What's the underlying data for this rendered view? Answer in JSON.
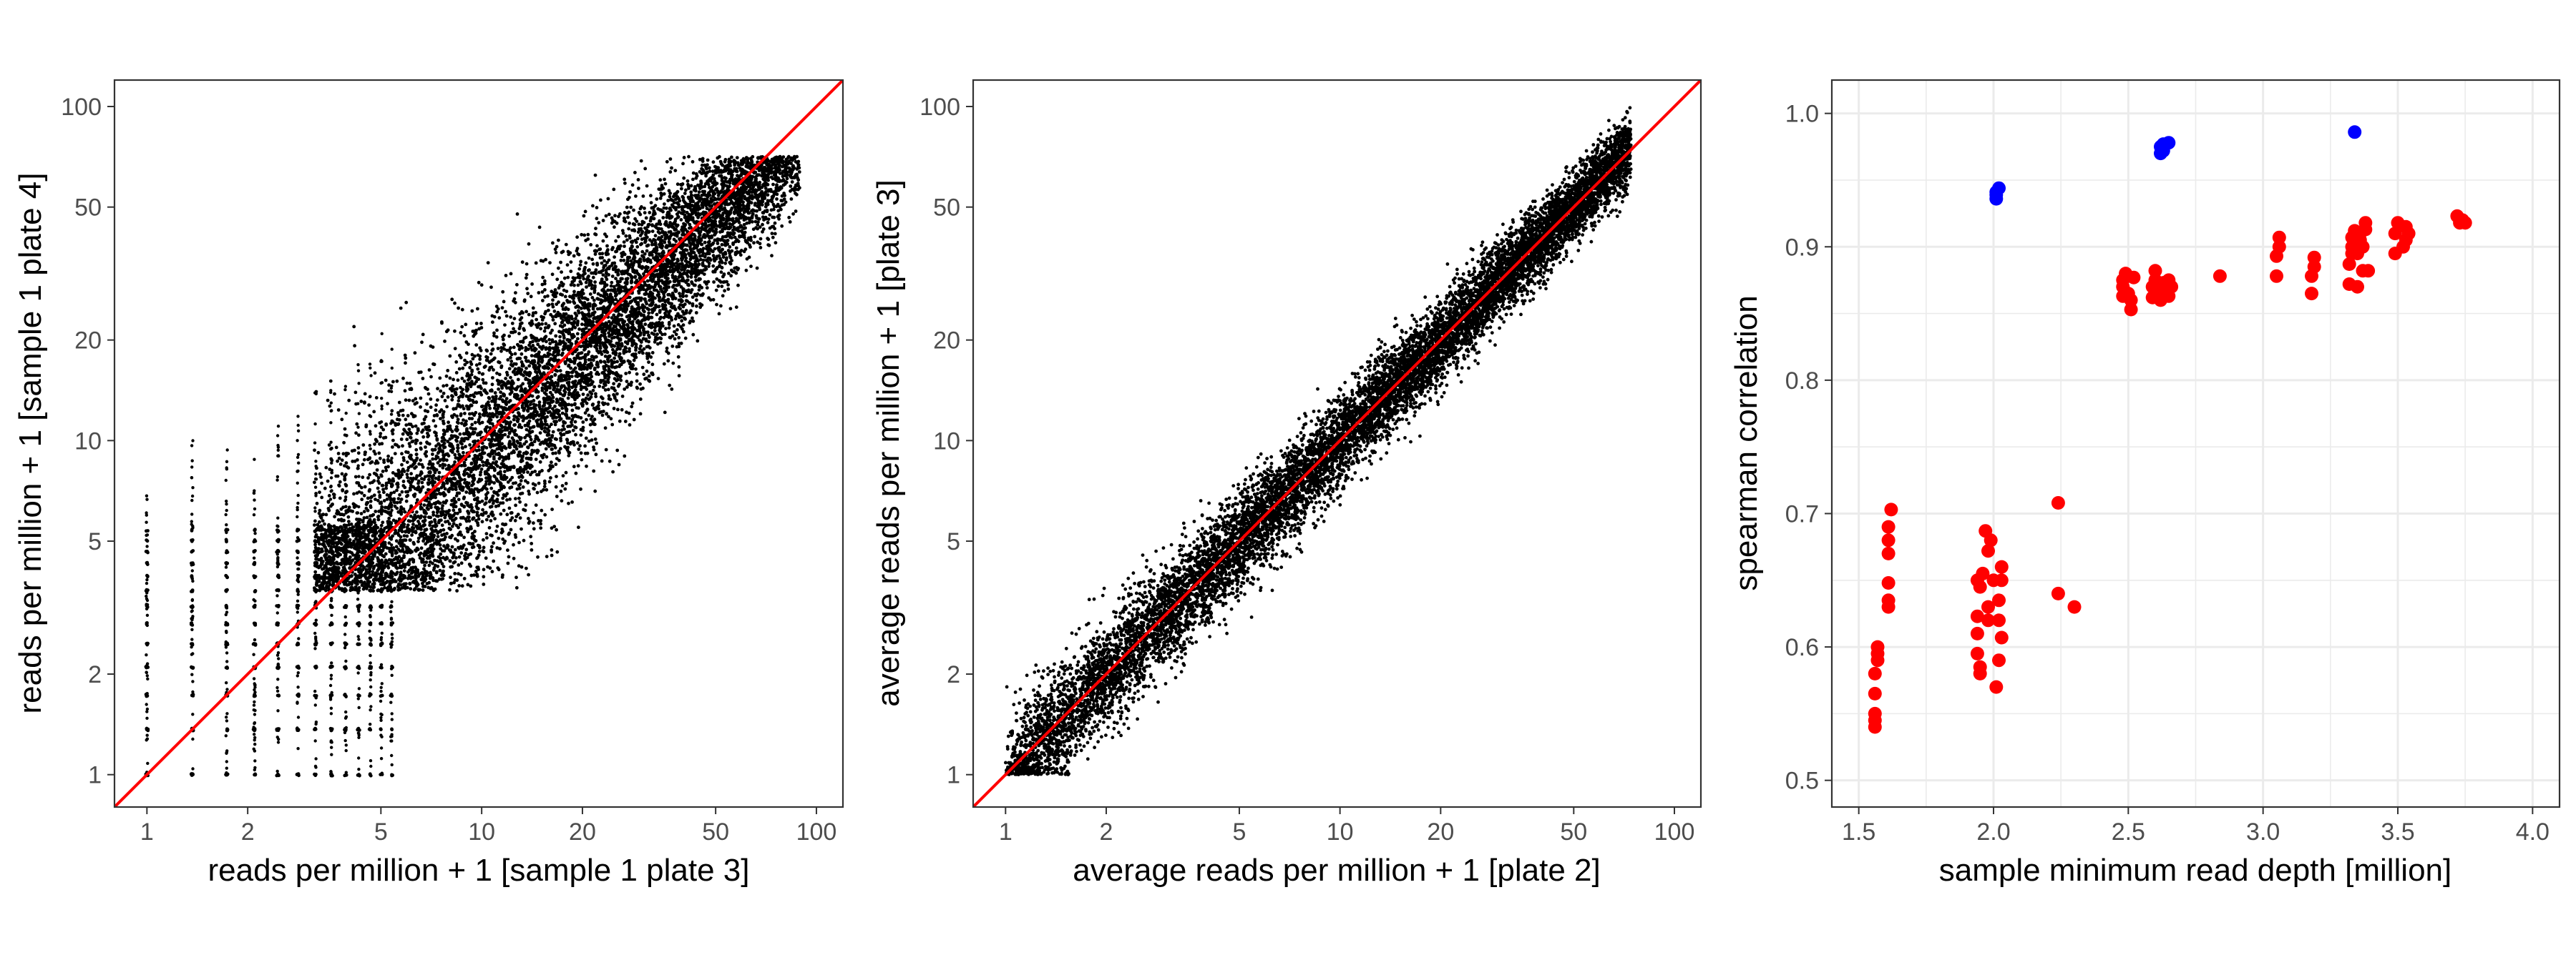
{
  "colors": {
    "points": "#000000",
    "identity_line": "#ff0000",
    "deep_group": "#ff0000",
    "shallow_group": "#0000ff",
    "grid": "#ebebeb",
    "panel_border": "#333333"
  },
  "chart_data": [
    {
      "type": "scatter",
      "xlabel": "reads per million + 1 [sample 1 plate 3]",
      "ylabel": "reads per million + 1 [sample 1 plate 4]",
      "x_scale": "log10",
      "y_scale": "log10",
      "xlim": [
        0.8,
        120
      ],
      "ylim": [
        0.8,
        120
      ],
      "x_ticks": [
        1,
        2,
        5,
        10,
        20,
        50,
        100
      ],
      "y_ticks": [
        1,
        2,
        5,
        10,
        20,
        50,
        100
      ],
      "x_tick_labels": [
        "1",
        "2",
        "5",
        "10",
        "20",
        "50",
        "100"
      ],
      "y_tick_labels": [
        "1",
        "2",
        "5",
        "10",
        "20",
        "50",
        "100"
      ],
      "reference_line": "y = x",
      "point_cloud": {
        "density": "very dense",
        "x_range": [
          1,
          90
        ],
        "y_range": [
          1,
          70
        ],
        "spread": "wide at low counts, narrowing toward the identity line at high counts; discrete count banding at low values"
      }
    },
    {
      "type": "scatter",
      "xlabel": "average reads per million + 1 [plate 2]",
      "ylabel": "average reads per million + 1 [plate 3]",
      "x_scale": "log10",
      "y_scale": "log10",
      "xlim": [
        0.8,
        120
      ],
      "ylim": [
        0.8,
        120
      ],
      "x_ticks": [
        1,
        2,
        5,
        10,
        20,
        50,
        100
      ],
      "y_ticks": [
        1,
        2,
        5,
        10,
        20,
        50,
        100
      ],
      "x_tick_labels": [
        "1",
        "2",
        "5",
        "10",
        "20",
        "50",
        "100"
      ],
      "y_tick_labels": [
        "1",
        "2",
        "5",
        "10",
        "20",
        "50",
        "100"
      ],
      "reference_line": "y = x",
      "point_cloud": {
        "density": "very dense",
        "x_range": [
          1,
          75
        ],
        "y_range": [
          1,
          70
        ],
        "spread": "tight band along the identity line"
      }
    },
    {
      "type": "scatter",
      "xlabel": "sample minimum read depth [million]",
      "ylabel": "spearman correlation",
      "xlim": [
        1.4,
        4.1
      ],
      "ylim": [
        0.48,
        1.025
      ],
      "x_ticks": [
        1.5,
        2.0,
        2.5,
        3.0,
        3.5,
        4.0
      ],
      "y_ticks": [
        0.5,
        0.6,
        0.7,
        0.8,
        0.9,
        1.0
      ],
      "x_tick_labels": [
        "1.5",
        "2.0",
        "2.5",
        "3.0",
        "3.5",
        "4.0"
      ],
      "y_tick_labels": [
        "0.5",
        "0.6",
        "0.7",
        "0.8",
        "0.9",
        "1.0"
      ],
      "grid": true,
      "series": [
        {
          "color": "#ff0000",
          "points": [
            [
              1.56,
              0.54
            ],
            [
              1.56,
              0.55
            ],
            [
              1.56,
              0.565
            ],
            [
              1.56,
              0.58
            ],
            [
              1.57,
              0.59
            ],
            [
              1.57,
              0.595
            ],
            [
              1.57,
              0.6
            ],
            [
              1.56,
              0.545
            ],
            [
              1.61,
              0.63
            ],
            [
              1.61,
              0.635
            ],
            [
              1.61,
              0.648
            ],
            [
              1.61,
              0.67
            ],
            [
              1.61,
              0.68
            ],
            [
              1.61,
              0.69
            ],
            [
              1.62,
              0.703
            ],
            [
              1.95,
              0.58
            ],
            [
              1.95,
              0.585
            ],
            [
              1.94,
              0.595
            ],
            [
              1.94,
              0.61
            ],
            [
              1.94,
              0.623
            ],
            [
              1.95,
              0.645
            ],
            [
              1.94,
              0.65
            ],
            [
              1.96,
              0.655
            ],
            [
              1.98,
              0.62
            ],
            [
              1.98,
              0.63
            ],
            [
              1.99,
              0.68
            ],
            [
              1.97,
              0.687
            ],
            [
              1.98,
              0.672
            ],
            [
              2.0,
              0.65
            ],
            [
              2.01,
              0.57
            ],
            [
              2.02,
              0.59
            ],
            [
              2.03,
              0.607
            ],
            [
              2.02,
              0.62
            ],
            [
              2.02,
              0.635
            ],
            [
              2.03,
              0.65
            ],
            [
              2.03,
              0.66
            ],
            [
              2.24,
              0.708
            ],
            [
              2.24,
              0.64
            ],
            [
              2.3,
              0.63
            ],
            [
              2.48,
              0.863
            ],
            [
              2.48,
              0.87
            ],
            [
              2.48,
              0.875
            ],
            [
              2.49,
              0.88
            ],
            [
              2.5,
              0.865
            ],
            [
              2.51,
              0.86
            ],
            [
              2.51,
              0.853
            ],
            [
              2.52,
              0.877
            ],
            [
              2.59,
              0.862
            ],
            [
              2.59,
              0.87
            ],
            [
              2.6,
              0.875
            ],
            [
              2.6,
              0.882
            ],
            [
              2.61,
              0.865
            ],
            [
              2.62,
              0.86
            ],
            [
              2.63,
              0.873
            ],
            [
              2.64,
              0.868
            ],
            [
              2.65,
              0.863
            ],
            [
              2.65,
              0.875
            ],
            [
              2.66,
              0.87
            ],
            [
              2.84,
              0.878
            ],
            [
              3.05,
              0.878
            ],
            [
              3.05,
              0.893
            ],
            [
              3.06,
              0.9
            ],
            [
              3.06,
              0.907
            ],
            [
              3.18,
              0.865
            ],
            [
              3.18,
              0.878
            ],
            [
              3.19,
              0.885
            ],
            [
              3.19,
              0.892
            ],
            [
              3.32,
              0.872
            ],
            [
              3.32,
              0.887
            ],
            [
              3.33,
              0.895
            ],
            [
              3.33,
              0.9
            ],
            [
              3.33,
              0.907
            ],
            [
              3.34,
              0.912
            ],
            [
              3.35,
              0.87
            ],
            [
              3.35,
              0.895
            ],
            [
              3.36,
              0.905
            ],
            [
              3.36,
              0.91
            ],
            [
              3.37,
              0.882
            ],
            [
              3.37,
              0.9
            ],
            [
              3.38,
              0.913
            ],
            [
              3.38,
              0.918
            ],
            [
              3.39,
              0.882
            ],
            [
              3.49,
              0.895
            ],
            [
              3.49,
              0.91
            ],
            [
              3.5,
              0.918
            ],
            [
              3.52,
              0.9
            ],
            [
              3.53,
              0.905
            ],
            [
              3.53,
              0.915
            ],
            [
              3.54,
              0.91
            ],
            [
              3.72,
              0.923
            ],
            [
              3.73,
              0.918
            ],
            [
              3.74,
              0.92
            ],
            [
              3.75,
              0.918
            ]
          ]
        },
        {
          "color": "#0000ff",
          "points": [
            [
              2.01,
              0.936
            ],
            [
              2.01,
              0.941
            ],
            [
              2.02,
              0.944
            ],
            [
              2.01,
              0.939
            ],
            [
              2.62,
              0.97
            ],
            [
              2.62,
              0.975
            ],
            [
              2.63,
              0.977
            ],
            [
              2.65,
              0.978
            ],
            [
              2.63,
              0.972
            ],
            [
              3.34,
              0.986
            ]
          ]
        }
      ]
    }
  ]
}
